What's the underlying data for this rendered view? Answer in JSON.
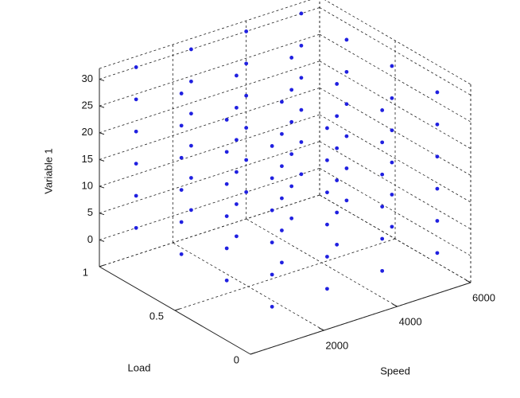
{
  "chart_data": {
    "type": "scatter3d",
    "xlabel": "Speed",
    "ylabel": "Load",
    "zlabel": "Variable 1",
    "xlim": [
      0,
      6000
    ],
    "ylim": [
      0,
      1
    ],
    "zlim": [
      -5,
      32
    ],
    "xticks": [
      2000,
      4000,
      6000
    ],
    "yticks": [
      0,
      0.5,
      1
    ],
    "zticks": [
      0,
      5,
      10,
      15,
      20,
      25,
      30
    ],
    "grid": true,
    "color": "#2020e0",
    "points": [
      [
        1000,
        0.1,
        0
      ],
      [
        1000,
        0.1,
        6
      ],
      [
        1000,
        0.1,
        12
      ],
      [
        1000,
        0.1,
        18
      ],
      [
        1000,
        0.1,
        24
      ],
      [
        1000,
        0.1,
        30
      ],
      [
        1000,
        0.4,
        0
      ],
      [
        1000,
        0.4,
        6
      ],
      [
        1000,
        0.4,
        12
      ],
      [
        1000,
        0.4,
        18
      ],
      [
        1000,
        0.4,
        24
      ],
      [
        1000,
        0.4,
        30
      ],
      [
        1000,
        0.7,
        0
      ],
      [
        1000,
        0.7,
        6
      ],
      [
        1000,
        0.7,
        12
      ],
      [
        1000,
        0.7,
        18
      ],
      [
        1000,
        0.7,
        24
      ],
      [
        1000,
        0.7,
        30
      ],
      [
        1000,
        1,
        0
      ],
      [
        1000,
        1,
        6
      ],
      [
        1000,
        1,
        12
      ],
      [
        1000,
        1,
        18
      ],
      [
        1000,
        1,
        24
      ],
      [
        1000,
        1,
        30
      ],
      [
        2500,
        0.1,
        0
      ],
      [
        2500,
        0.1,
        6
      ],
      [
        2500,
        0.1,
        12
      ],
      [
        2500,
        0.1,
        18
      ],
      [
        2500,
        0.1,
        24
      ],
      [
        2500,
        0.1,
        30
      ],
      [
        2500,
        0.4,
        0
      ],
      [
        2500,
        0.4,
        6
      ],
      [
        2500,
        0.4,
        12
      ],
      [
        2500,
        0.4,
        18
      ],
      [
        2500,
        0.4,
        24
      ],
      [
        2500,
        0.4,
        30
      ],
      [
        2500,
        0.7,
        0
      ],
      [
        2500,
        0.7,
        6
      ],
      [
        2500,
        0.7,
        12
      ],
      [
        2500,
        0.7,
        18
      ],
      [
        2500,
        0.7,
        24
      ],
      [
        2500,
        0.7,
        30
      ],
      [
        2500,
        1,
        0
      ],
      [
        2500,
        1,
        6
      ],
      [
        2500,
        1,
        12
      ],
      [
        2500,
        1,
        18
      ],
      [
        2500,
        1,
        24
      ],
      [
        2500,
        1,
        30
      ],
      [
        4000,
        0.1,
        0
      ],
      [
        4000,
        0.1,
        6
      ],
      [
        4000,
        0.1,
        12
      ],
      [
        4000,
        0.1,
        18
      ],
      [
        4000,
        0.1,
        24
      ],
      [
        4000,
        0.1,
        30
      ],
      [
        4000,
        0.4,
        0
      ],
      [
        4000,
        0.4,
        6
      ],
      [
        4000,
        0.4,
        12
      ],
      [
        4000,
        0.4,
        18
      ],
      [
        4000,
        0.4,
        24
      ],
      [
        4000,
        0.4,
        30
      ],
      [
        4000,
        0.7,
        0
      ],
      [
        4000,
        0.7,
        6
      ],
      [
        4000,
        0.7,
        12
      ],
      [
        4000,
        0.7,
        18
      ],
      [
        4000,
        0.7,
        24
      ],
      [
        4000,
        0.7,
        30
      ],
      [
        4000,
        1,
        0
      ],
      [
        4000,
        1,
        6
      ],
      [
        4000,
        1,
        12
      ],
      [
        4000,
        1,
        18
      ],
      [
        4000,
        1,
        24
      ],
      [
        4000,
        1,
        30
      ],
      [
        5500,
        0.1,
        0
      ],
      [
        5500,
        0.1,
        6
      ],
      [
        5500,
        0.1,
        12
      ],
      [
        5500,
        0.1,
        18
      ],
      [
        5500,
        0.1,
        24
      ],
      [
        5500,
        0.1,
        30
      ],
      [
        5500,
        0.4,
        0
      ],
      [
        5500,
        0.4,
        6
      ],
      [
        5500,
        0.4,
        12
      ],
      [
        5500,
        0.4,
        18
      ],
      [
        5500,
        0.4,
        24
      ],
      [
        5500,
        0.4,
        30
      ],
      [
        5500,
        0.7,
        0
      ],
      [
        5500,
        0.7,
        6
      ],
      [
        5500,
        0.7,
        12
      ],
      [
        5500,
        0.7,
        18
      ],
      [
        5500,
        0.7,
        24
      ],
      [
        5500,
        0.7,
        30
      ],
      [
        5500,
        1,
        0
      ],
      [
        5500,
        1,
        6
      ],
      [
        5500,
        1,
        12
      ],
      [
        5500,
        1,
        18
      ],
      [
        5500,
        1,
        24
      ],
      [
        5500,
        1,
        30
      ]
    ]
  }
}
